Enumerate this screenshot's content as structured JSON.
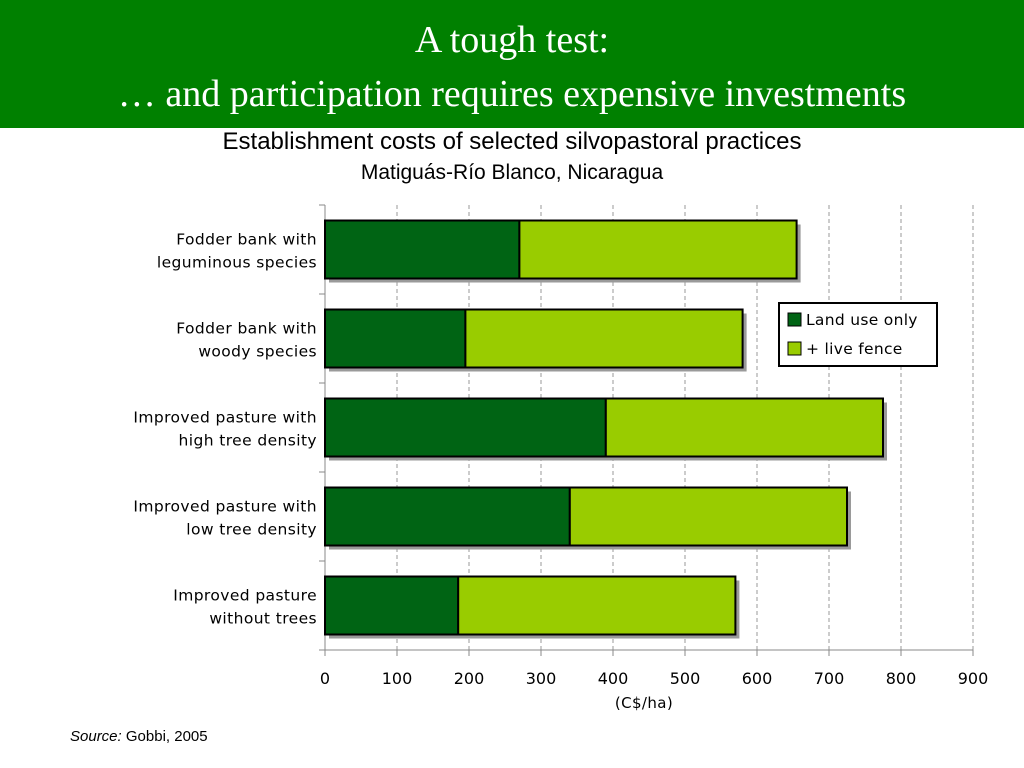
{
  "header": {
    "title_line1": "A tough test:",
    "title_line2": "… and participation requires expensive investments"
  },
  "source": {
    "label": "Source:",
    "text": "Gobbi, 2005"
  },
  "colors": {
    "header_background": "#008000",
    "land_use_only": "#006414",
    "live_fence": "#99cc00"
  },
  "chart_data": {
    "type": "bar",
    "orientation": "horizontal",
    "stacked": true,
    "title": "Establishment costs of selected silvopastoral practices",
    "subtitle": "Matiguás-Río Blanco, Nicaragua",
    "xlabel": "(C$/ha)",
    "xlim": [
      0,
      900
    ],
    "xticks": [
      0,
      100,
      200,
      300,
      400,
      500,
      600,
      700,
      800,
      900
    ],
    "grid": "vertical dashed",
    "legend_position": "right",
    "categories": [
      [
        "Fodder bank with",
        "leguminous species"
      ],
      [
        "Fodder bank with",
        "woody species"
      ],
      [
        "Improved pasture with",
        "high tree density"
      ],
      [
        "Improved pasture with",
        "low tree density"
      ],
      [
        "Improved pasture",
        "without trees"
      ]
    ],
    "series": [
      {
        "name": "Land use only",
        "color": "#006414",
        "values": [
          270,
          195,
          390,
          340,
          185
        ]
      },
      {
        "name": "+ live fence",
        "color": "#99cc00",
        "values": [
          385,
          385,
          385,
          385,
          385
        ]
      }
    ]
  }
}
